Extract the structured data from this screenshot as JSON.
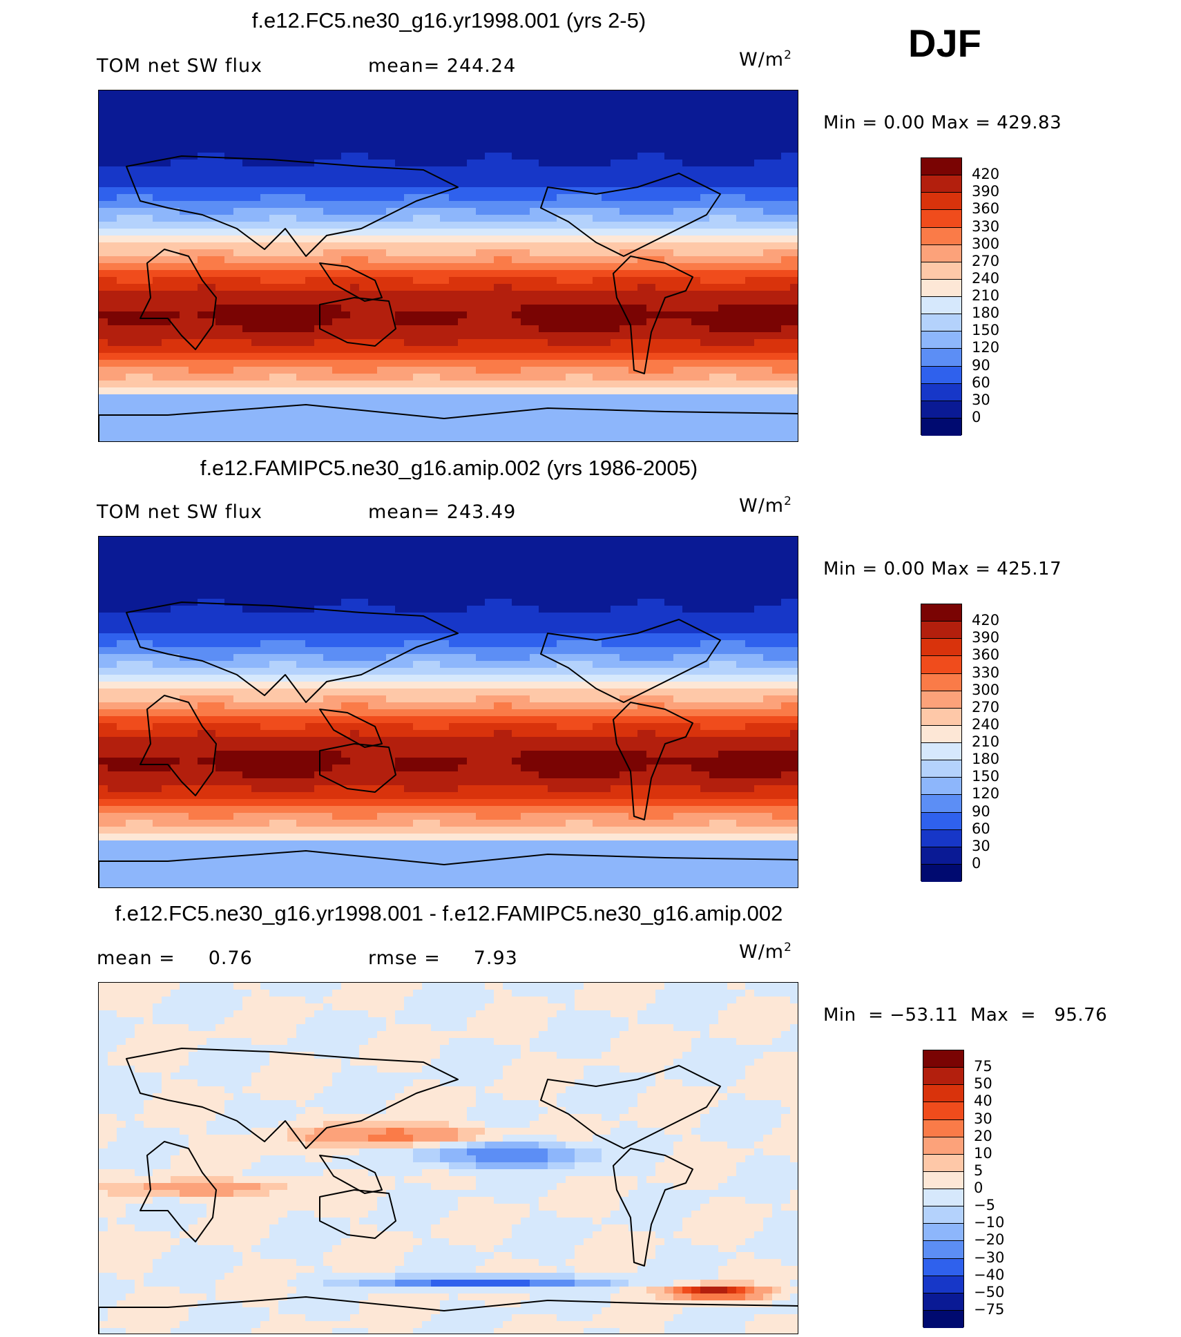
{
  "season": "DJF",
  "chart_data": [
    {
      "type": "heatmap",
      "title": "f.e12.FC5.ne30_g16.yr1998.001 (yrs 2-5)",
      "left_label": "TOM net SW flux",
      "mid_label": "mean= 244.24",
      "units": "W/m",
      "units_sup": "2",
      "minmax": "Min =     0.00  Max  =  429.83",
      "colorbar_levels": [
        "420",
        "390",
        "360",
        "330",
        "300",
        "270",
        "240",
        "210",
        "180",
        "150",
        "120",
        "90",
        "60",
        "30",
        "0"
      ],
      "colorbar_colors": [
        "#7a0403",
        "#b31f0d",
        "#d9330c",
        "#f04c1c",
        "#fa7b48",
        "#fca27a",
        "#fec8a8",
        "#fde7d6",
        "#d6e8fc",
        "#b4d2fc",
        "#8db6fb",
        "#5c8ef5",
        "#2f61ed",
        "#1737c8",
        "#0a1a95",
        "#000a70"
      ],
      "mean": 244.24,
      "min": 0.0,
      "max": 429.83
    },
    {
      "type": "heatmap",
      "title": "f.e12.FAMIPC5.ne30_g16.amip.002 (yrs 1986-2005)",
      "left_label": "TOM net SW flux",
      "mid_label": "mean= 243.49",
      "units": "W/m",
      "units_sup": "2",
      "minmax": "Min =     0.00  Max  =  425.17",
      "colorbar_levels": [
        "420",
        "390",
        "360",
        "330",
        "300",
        "270",
        "240",
        "210",
        "180",
        "150",
        "120",
        "90",
        "60",
        "30",
        "0"
      ],
      "colorbar_colors": [
        "#7a0403",
        "#b31f0d",
        "#d9330c",
        "#f04c1c",
        "#fa7b48",
        "#fca27a",
        "#fec8a8",
        "#fde7d6",
        "#d6e8fc",
        "#b4d2fc",
        "#8db6fb",
        "#5c8ef5",
        "#2f61ed",
        "#1737c8",
        "#0a1a95",
        "#000a70"
      ],
      "mean": 243.49,
      "min": 0.0,
      "max": 425.17
    },
    {
      "type": "heatmap",
      "title": "f.e12.FC5.ne30_g16.yr1998.001 - f.e12.FAMIPC5.ne30_g16.amip.002",
      "left_label": "mean =     0.76",
      "mid_label": "rmse =     7.93",
      "units": "W/m",
      "units_sup": "2",
      "minmax": "Min  = −53.11  Max  =   95.76",
      "colorbar_levels": [
        "75",
        "50",
        "40",
        "30",
        "20",
        "10",
        "5",
        "0",
        "−5",
        "−10",
        "−20",
        "−30",
        "−40",
        "−50",
        "−75"
      ],
      "colorbar_colors": [
        "#7a0403",
        "#b31f0d",
        "#d9330c",
        "#f04c1c",
        "#fa7b48",
        "#fca27a",
        "#fec8a8",
        "#fde7d6",
        "#d6e8fc",
        "#b4d2fc",
        "#8db6fb",
        "#5c8ef5",
        "#2f61ed",
        "#1737c8",
        "#0a1a95",
        "#000a70"
      ],
      "mean": 0.76,
      "rmse": 7.93,
      "min": -53.11,
      "max": 95.76
    }
  ]
}
